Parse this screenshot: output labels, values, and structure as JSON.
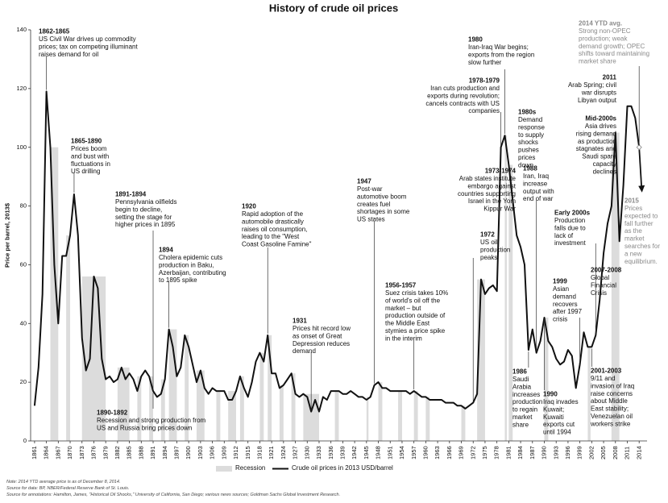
{
  "chart_data": {
    "type": "line",
    "title": "History of crude oil prices",
    "y_label": "Price per barrel, 2013$",
    "xlim": [
      1860,
      2016
    ],
    "ylim": [
      0,
      140
    ],
    "yticks": [
      0,
      20,
      40,
      60,
      80,
      100,
      120,
      140
    ],
    "xticks": [
      1861,
      1864,
      1867,
      1870,
      1873,
      1876,
      1879,
      1882,
      1885,
      1888,
      1891,
      1894,
      1897,
      1900,
      1903,
      1906,
      1909,
      1912,
      1915,
      1918,
      1921,
      1924,
      1927,
      1930,
      1933,
      1936,
      1939,
      1942,
      1945,
      1948,
      1951,
      1954,
      1957,
      1960,
      1963,
      1966,
      1969,
      1972,
      1975,
      1978,
      1981,
      1984,
      1987,
      1990,
      1993,
      1996,
      1999,
      2002,
      2005,
      2008,
      2011,
      2014
    ],
    "x": [
      1861,
      1862,
      1863,
      1864,
      1865,
      1866,
      1867,
      1868,
      1869,
      1870,
      1871,
      1872,
      1873,
      1874,
      1875,
      1876,
      1877,
      1878,
      1879,
      1880,
      1881,
      1882,
      1883,
      1884,
      1885,
      1886,
      1887,
      1888,
      1889,
      1890,
      1891,
      1892,
      1893,
      1894,
      1895,
      1896,
      1897,
      1898,
      1899,
      1900,
      1901,
      1902,
      1903,
      1904,
      1905,
      1906,
      1907,
      1908,
      1909,
      1910,
      1911,
      1912,
      1913,
      1914,
      1915,
      1916,
      1917,
      1918,
      1919,
      1920,
      1921,
      1922,
      1923,
      1924,
      1925,
      1926,
      1927,
      1928,
      1929,
      1930,
      1931,
      1932,
      1933,
      1934,
      1935,
      1936,
      1937,
      1938,
      1939,
      1940,
      1941,
      1942,
      1943,
      1944,
      1945,
      1946,
      1947,
      1948,
      1949,
      1950,
      1951,
      1952,
      1953,
      1954,
      1955,
      1956,
      1957,
      1958,
      1959,
      1960,
      1961,
      1962,
      1963,
      1964,
      1965,
      1966,
      1967,
      1968,
      1969,
      1970,
      1971,
      1972,
      1973,
      1974,
      1975,
      1976,
      1977,
      1978,
      1979,
      1980,
      1981,
      1982,
      1983,
      1984,
      1985,
      1986,
      1987,
      1988,
      1989,
      1990,
      1991,
      1992,
      1993,
      1994,
      1995,
      1996,
      1997,
      1998,
      1999,
      2000,
      2001,
      2002,
      2003,
      2004,
      2005,
      2006,
      2007,
      2008,
      2009,
      2010,
      2011,
      2012,
      2013,
      2014
    ],
    "series": [
      {
        "name": "Crude oil prices in 2013 USD/barrel",
        "color": "#111111",
        "values": [
          12,
          25,
          50,
          119,
          100,
          60,
          40,
          63,
          63,
          70,
          84,
          70,
          35,
          24,
          28,
          56,
          52,
          28,
          21,
          22,
          20,
          21,
          25,
          21,
          23,
          21,
          17,
          22,
          24,
          22,
          17,
          15,
          16,
          21,
          38,
          32,
          22,
          25,
          36,
          32,
          26,
          20,
          24,
          18,
          16,
          18,
          17,
          17,
          17,
          14,
          14,
          17,
          22,
          18,
          15,
          20,
          27,
          30,
          27,
          36,
          23,
          23,
          18,
          19,
          21,
          23,
          16,
          15,
          16,
          15,
          10,
          14,
          10,
          15,
          14,
          17,
          17,
          17,
          16,
          16,
          17,
          16,
          15,
          15,
          14,
          15,
          19,
          20,
          18,
          18,
          17,
          17,
          17,
          17,
          17,
          16,
          17,
          16,
          15,
          15,
          14,
          14,
          14,
          14,
          13,
          13,
          13,
          12,
          12,
          11,
          12,
          13,
          16,
          55,
          50,
          52,
          53,
          51,
          100,
          104,
          94,
          82,
          70,
          66,
          60,
          31,
          38,
          30,
          34,
          42,
          34,
          32,
          28,
          26,
          27,
          31,
          29,
          18,
          26,
          37,
          32,
          32,
          36,
          48,
          64,
          74,
          80,
          105,
          68,
          87,
          114,
          114,
          110,
          100
        ]
      }
    ],
    "recession_name": "Recession",
    "recession_color": "#dcdcdc",
    "recessions": [
      [
        1865,
        1867
      ],
      [
        1869,
        1870
      ],
      [
        1873,
        1879
      ],
      [
        1882,
        1885
      ],
      [
        1887,
        1888
      ],
      [
        1890,
        1891
      ],
      [
        1893,
        1894
      ],
      [
        1895,
        1897
      ],
      [
        1899,
        1900
      ],
      [
        1902,
        1904
      ],
      [
        1907,
        1908
      ],
      [
        1910,
        1912
      ],
      [
        1913,
        1914
      ],
      [
        1918,
        1919
      ],
      [
        1920,
        1921
      ],
      [
        1923,
        1924
      ],
      [
        1926,
        1927
      ],
      [
        1929,
        1933
      ],
      [
        1937,
        1938
      ],
      [
        1945,
        1945.5
      ],
      [
        1948,
        1949
      ],
      [
        1953,
        1954
      ],
      [
        1957,
        1958
      ],
      [
        1960,
        1961
      ],
      [
        1969,
        1970
      ],
      [
        1973,
        1975
      ],
      [
        1980,
        1980.5
      ],
      [
        1981,
        1982
      ],
      [
        1990,
        1991
      ],
      [
        2001,
        2001.7
      ],
      [
        2007,
        2009
      ]
    ],
    "annotations": [
      {
        "title": "1862-1865",
        "lines": [
          "US Civil War drives up commodity",
          "prices; tax on competing illuminant",
          "raises demand for oil"
        ]
      },
      {
        "title": "1865-1890",
        "lines": [
          "Prices boom",
          "and bust with",
          "fluctuations in",
          "US drilling"
        ]
      },
      {
        "title": "1891-1894",
        "lines": [
          "Pennsylvania oilfields",
          "begin to decline,",
          "setting the stage for",
          "higher prices in 1895"
        ]
      },
      {
        "title": "1894",
        "lines": [
          "Cholera epidemic cuts",
          "production in Baku,",
          "Azerbaijan, contributing",
          "to 1895 spike"
        ]
      },
      {
        "title": "1890-1892",
        "lines": [
          "Recession and strong production from",
          "US and Russia bring prices down"
        ]
      },
      {
        "title": "1920",
        "lines": [
          "Rapid adoption of the",
          "automobile drastically",
          "raises oil consumption,",
          "leading to the \"West",
          "Coast Gasoline Famine\""
        ]
      },
      {
        "title": "1931",
        "lines": [
          "Prices hit record low",
          "as onset of Great",
          "Depression reduces",
          "demand"
        ]
      },
      {
        "title": "1947",
        "lines": [
          "Post-war",
          "automotive boom",
          "creates fuel",
          "shortages in some",
          "US states"
        ]
      },
      {
        "title": "1956-1957",
        "lines": [
          "Suez crisis takes 10%",
          "of world's oil off the",
          "market – but",
          "production outside of",
          "the Middle East",
          "stymies a price spike",
          "in the interim"
        ]
      },
      {
        "title": "1973-1974",
        "lines": [
          "Arab states institute",
          "embargo against",
          "countries supporting",
          "Israel in the Yom",
          "Kippur War"
        ]
      },
      {
        "title": "1972",
        "lines": [
          "US oil",
          "production",
          "peaks"
        ]
      },
      {
        "title": "1978-1979",
        "lines": [
          "Iran cuts production and",
          "exports during revolution;",
          "cancels contracts with US",
          "companies"
        ]
      },
      {
        "title": "1980",
        "lines": [
          "Iran-Iraq War begins;",
          "exports from the region",
          "slow further"
        ]
      },
      {
        "title": "1980s",
        "lines": [
          "Demand",
          "response",
          "to supply",
          "shocks",
          "pushes",
          "prices",
          "down"
        ]
      },
      {
        "title": "1988",
        "lines": [
          "Iran, Iraq",
          "increase",
          "output with",
          "end of war"
        ]
      },
      {
        "title": "1986",
        "lines": [
          "Saudi",
          "Arabia",
          "increases",
          "production",
          "to regain",
          "market",
          "share"
        ]
      },
      {
        "title": "1990",
        "lines": [
          "Iraq invades",
          "Kuwait;",
          "Kuwaiti",
          "exports cut",
          "until 1994"
        ]
      },
      {
        "title": "1999",
        "lines": [
          "Asian",
          "demand",
          "recovers",
          "after 1997",
          "crisis"
        ]
      },
      {
        "title": "Early 2000s",
        "lines": [
          "Production",
          "falls due to",
          "lack of",
          "investment"
        ]
      },
      {
        "title": "Mid-2000s",
        "lines": [
          "Asia drives",
          "rising demand",
          "as production",
          "stagnates and",
          "Saudi spare",
          "capacity",
          "declines"
        ]
      },
      {
        "title": "2011",
        "lines": [
          "Arab Spring; civil",
          "war disrupts",
          "Libyan output"
        ]
      },
      {
        "title": "2014 YTD avg.",
        "lines": [
          "Strong non-OPEC",
          "production; weak",
          "demand growth; OPEC",
          "shifts toward maintaining",
          "market share"
        ],
        "color": "#8a8a8a"
      },
      {
        "title": "2007-2008",
        "lines": [
          "Global",
          "Financial",
          "Crisis"
        ]
      },
      {
        "title": "2001-2003",
        "lines": [
          "9/11 and",
          "invasion of Iraq",
          "raise concerns",
          "about Middle",
          "East stability;",
          "Venezuelan oil",
          "workers strike"
        ]
      },
      {
        "title": "2015",
        "lines": [
          "Prices",
          "expected to",
          "fall further",
          "as the",
          "market",
          "searches for",
          "a new",
          "equilibrium."
        ],
        "color": "#8a8a8a"
      }
    ],
    "notes": [
      "Note: 2014 YTD average price is as of December 8, 2014.",
      "Source for data: BP, NBER/Federal Reserve Bank of St. Louis.",
      "Source for annotations: Hamilton, James, \"Historical Oil Shocks,\" University of California, San Diego; various news sources; Goldman Sachs Global Investment Research."
    ]
  }
}
